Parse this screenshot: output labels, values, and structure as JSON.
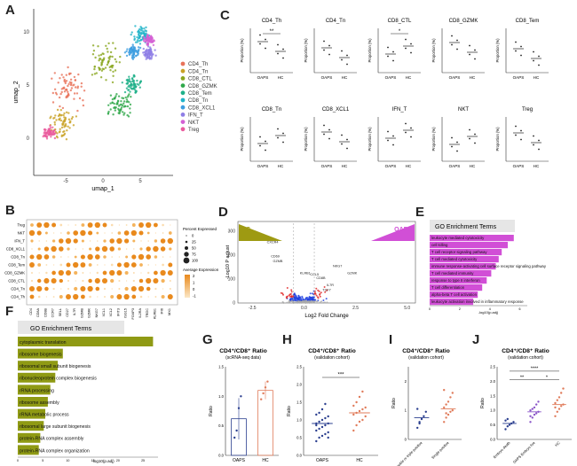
{
  "panel_letters": [
    "A",
    "B",
    "C",
    "D",
    "E",
    "F",
    "G",
    "H",
    "I",
    "J"
  ],
  "umap": {
    "xlabel": "umap_1",
    "ylabel": "umap_2",
    "xticks": [
      "-5",
      "0",
      "5"
    ],
    "yticks": [
      "10",
      "5",
      "0"
    ],
    "clusters": [
      {
        "name": "CD4_Th",
        "color": "#e8735a"
      },
      {
        "name": "CD4_Tn",
        "color": "#c9a227"
      },
      {
        "name": "CD8_CTL",
        "color": "#8aa61f"
      },
      {
        "name": "CD8_GZMK",
        "color": "#2fa84a"
      },
      {
        "name": "CD8_Tem",
        "color": "#1fb08a"
      },
      {
        "name": "CD8_Tn",
        "color": "#1fb3c8"
      },
      {
        "name": "CD8_XCL1",
        "color": "#3d9ee0"
      },
      {
        "name": "IFN_T",
        "color": "#8e7ee6"
      },
      {
        "name": "NKT",
        "color": "#d460d4"
      },
      {
        "name": "Treg",
        "color": "#ea5c9e"
      }
    ]
  },
  "dotplot": {
    "rows": [
      "Treg",
      "NKT",
      "IFN_T",
      "CD8_XCL1",
      "CD8_Tn",
      "CD8_Tem",
      "CD8_GZMK",
      "CD8_CTL",
      "CD4_Tn",
      "CD4_Th"
    ],
    "genes": [
      "CD4",
      "CD8A",
      "CD8B",
      "CCR7",
      "SELL",
      "CD27",
      "IL7R",
      "GZMB",
      "GZMK",
      "NKG7",
      "XCL1",
      "XCL2",
      "IFIT3",
      "ISG15",
      "FOXP3",
      "IL2RA",
      "TRDC",
      "KLRB1",
      "IFI6",
      "MX1"
    ],
    "pct_title": "Percent Expressed",
    "pct_values": [
      "0",
      "25",
      "50",
      "75",
      "100"
    ],
    "avg_title": "Average Expression",
    "avg_values": [
      "2",
      "1",
      "0",
      "-1"
    ]
  },
  "proportions": {
    "ylabel": "Proportion (%)",
    "groups": [
      "OAPS",
      "HC"
    ],
    "panels": [
      {
        "title": "CD4_Th",
        "sig": "**"
      },
      {
        "title": "CD4_Tn",
        "sig": ""
      },
      {
        "title": "CD8_CTL",
        "sig": "*"
      },
      {
        "title": "CD8_GZMK",
        "sig": ""
      },
      {
        "title": "CD8_Tem",
        "sig": ""
      },
      {
        "title": "CD8_Tn",
        "sig": ""
      },
      {
        "title": "CD8_XCL1",
        "sig": ""
      },
      {
        "title": "IFN_T",
        "sig": ""
      },
      {
        "title": "NKT",
        "sig": ""
      },
      {
        "title": "Treg",
        "sig": ""
      }
    ]
  },
  "volcano": {
    "left_label": "HC",
    "right_label": "OAPS",
    "xlabel": "Log2 Fold Change",
    "ylabel": "-Log10 P adjust",
    "xticks": [
      "-2.5",
      "0.0",
      "2.5",
      "5.0"
    ],
    "yticks": [
      "300",
      "200",
      "100",
      "0"
    ],
    "genes": [
      "CXCR4",
      "CD69",
      "GZMB",
      "CCL5",
      "KLRB1",
      "NKG7",
      "GZMK",
      "CD8B",
      "IL7R",
      "TCF7"
    ]
  },
  "go_e": {
    "header": "GO Enrichment Terms",
    "color": "#d14fd6",
    "xlabel": "-log10(p.adj)",
    "xticks": [
      "0",
      "2",
      "4",
      "6"
    ],
    "terms": [
      {
        "label": "leukocyte mediated cytotoxicity",
        "value": 5.6
      },
      {
        "label": "cell killing",
        "value": 5.2
      },
      {
        "label": "T cell receptor signaling pathway",
        "value": 4.8
      },
      {
        "label": "T cell mediated cytotoxicity",
        "value": 4.6
      },
      {
        "label": "immune response-activating cell surface receptor signaling pathway",
        "value": 4.4
      },
      {
        "label": "T cell mediated immunity",
        "value": 4.1
      },
      {
        "label": "response to type II interferon",
        "value": 3.8
      },
      {
        "label": "T cell differentiation",
        "value": 3.5
      },
      {
        "label": "alpha-beta T cell activation",
        "value": 3.2
      },
      {
        "label": "leukocyte activation involved in inflammatory response",
        "value": 2.9
      }
    ]
  },
  "go_f": {
    "header": "GO Enrichment Terms",
    "color": "#8f9a14",
    "xlabel": "-log10(p.adj)",
    "xticks": [
      "0",
      "5",
      "10",
      "15",
      "20",
      "25"
    ],
    "terms": [
      {
        "label": "cytoplasmic translation",
        "value": 27
      },
      {
        "label": "ribosome biogenesis",
        "value": 9
      },
      {
        "label": "ribosomal small subunit biogenesis",
        "value": 8
      },
      {
        "label": "ribonucleoprotein complex biogenesis",
        "value": 7.5
      },
      {
        "label": "rRNA processing",
        "value": 6.5
      },
      {
        "label": "ribosome assembly",
        "value": 6
      },
      {
        "label": "rRNA metabolic process",
        "value": 5.5
      },
      {
        "label": "ribosomal large subunit biogenesis",
        "value": 5.2
      },
      {
        "label": "protein-RNA complex assembly",
        "value": 4.5
      },
      {
        "label": "protein-RNA complex organization",
        "value": 4.2
      }
    ]
  },
  "ratio_g": {
    "title": "CD4⁺/CD8⁺ Ratio",
    "subtitle": "(scRNA-seq data)",
    "ylabel": "Ratio",
    "ylim": [
      0,
      1.5
    ],
    "yticks": [
      "0.0",
      "0.5",
      "1.0",
      "1.5"
    ],
    "groups": [
      {
        "label": "OAPS",
        "mean": 0.62,
        "sd": 0.35,
        "color": "#2b3f8f",
        "points": [
          0.3,
          0.42,
          0.8,
          1.0
        ]
      },
      {
        "label": "HC",
        "mean": 1.1,
        "sd": 0.15,
        "color": "#e07b5a",
        "points": [
          0.95,
          1.05,
          1.15,
          1.25
        ]
      }
    ]
  },
  "ratio_h": {
    "title": "CD4⁺/CD8⁺ Ratio",
    "subtitle": "(validation cohort)",
    "ylabel": "Ratio",
    "sig": "***",
    "ylim": [
      0,
      2.5
    ],
    "yticks": [
      "0.0",
      "0.5",
      "1.0",
      "1.5",
      "2.0",
      "2.5"
    ],
    "groups": [
      {
        "label": "OAPS",
        "mean": 0.9,
        "color": "#2b3f8f",
        "points": [
          0.4,
          0.5,
          0.55,
          0.6,
          0.65,
          0.7,
          0.75,
          0.8,
          0.85,
          0.9,
          0.9,
          0.95,
          1.0,
          1.05,
          1.1,
          1.15,
          1.2,
          1.3,
          1.45,
          0.5,
          0.85
        ]
      },
      {
        "label": "HC",
        "mean": 1.2,
        "color": "#e07b5a",
        "points": [
          0.7,
          0.85,
          0.95,
          1.0,
          1.1,
          1.15,
          1.2,
          1.25,
          1.3,
          1.35,
          1.4,
          1.5,
          1.65,
          1.8
        ]
      }
    ]
  },
  "ratio_i": {
    "title": "CD4⁺/CD8⁺ Ratio",
    "subtitle": "(validation cohort)",
    "ylabel": "Ratio",
    "ylim": [
      0,
      2.5
    ],
    "yticks": [
      "0",
      "1",
      "2"
    ],
    "groups": [
      {
        "label": "Double or triple positive",
        "mean": 0.75,
        "color": "#2b3f8f",
        "points": [
          0.4,
          0.55,
          0.7,
          0.8,
          0.95,
          1.05,
          0.6
        ]
      },
      {
        "label": "Single positive",
        "mean": 1.05,
        "color": "#e07b5a",
        "points": [
          0.6,
          0.75,
          0.85,
          0.95,
          1.0,
          1.1,
          1.2,
          1.3,
          1.45,
          1.6,
          1.7,
          0.9
        ]
      }
    ]
  },
  "ratio_j": {
    "title": "CD4⁺/CD8⁺ Ratio",
    "subtitle": "(validation cohort)",
    "ylabel": "Ratio",
    "sig": [
      "****",
      "**",
      "*"
    ],
    "ylim": [
      0,
      2.5
    ],
    "yticks": [
      "0.0",
      "0.5",
      "1.0",
      "1.5",
      "2.0",
      "2.5"
    ],
    "groups": [
      {
        "label": "Embryo death",
        "mean": 0.55,
        "color": "#2b3f8f",
        "points": [
          0.35,
          0.45,
          0.5,
          0.55,
          0.6,
          0.65,
          0.7
        ]
      },
      {
        "label": "OAPS Embryo live",
        "mean": 0.95,
        "color": "#8b56c8",
        "points": [
          0.6,
          0.75,
          0.85,
          0.9,
          0.95,
          1.0,
          1.05,
          1.1,
          1.2,
          1.3,
          0.8
        ]
      },
      {
        "label": "HC",
        "mean": 1.2,
        "color": "#e07b5a",
        "points": [
          0.8,
          0.95,
          1.05,
          1.15,
          1.2,
          1.25,
          1.35,
          1.45,
          1.6,
          1.75,
          1.1
        ]
      }
    ]
  }
}
